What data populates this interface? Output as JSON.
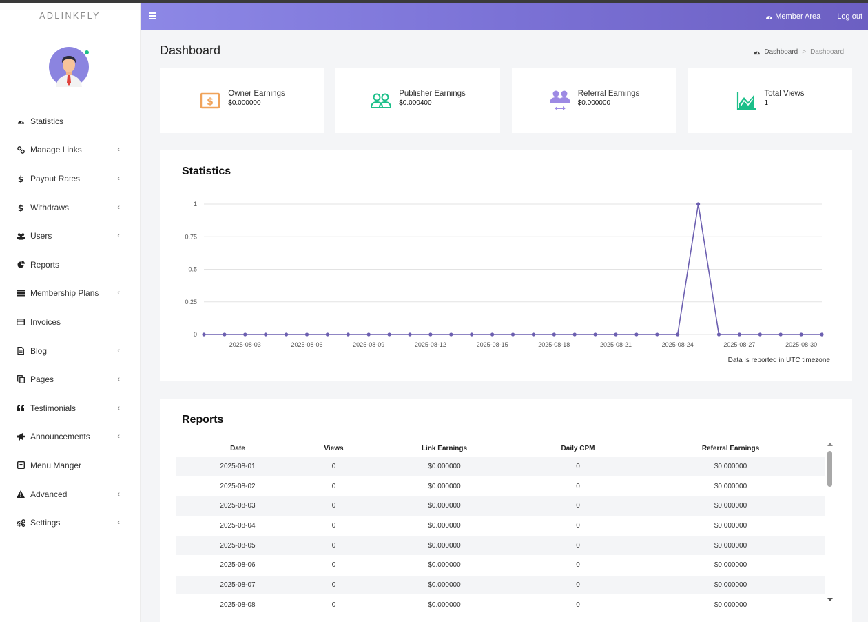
{
  "brand": "ADLINKFLY",
  "sidebar": {
    "items": [
      {
        "label": "Statistics",
        "icon": "tachometer-icon",
        "has_submenu": false
      },
      {
        "label": "Manage Links",
        "icon": "link-icon",
        "has_submenu": true
      },
      {
        "label": "Payout Rates",
        "icon": "dollar-icon",
        "has_submenu": true
      },
      {
        "label": "Withdraws",
        "icon": "dollar-icon",
        "has_submenu": true
      },
      {
        "label": "Users",
        "icon": "users-icon",
        "has_submenu": true
      },
      {
        "label": "Reports",
        "icon": "pie-chart-icon",
        "has_submenu": false
      },
      {
        "label": "Membership Plans",
        "icon": "bars-icon",
        "has_submenu": true
      },
      {
        "label": "Invoices",
        "icon": "credit-card-icon",
        "has_submenu": false
      },
      {
        "label": "Blog",
        "icon": "file-icon",
        "has_submenu": true
      },
      {
        "label": "Pages",
        "icon": "copy-icon",
        "has_submenu": true
      },
      {
        "label": "Testimonials",
        "icon": "quote-icon",
        "has_submenu": true
      },
      {
        "label": "Announcements",
        "icon": "bullhorn-icon",
        "has_submenu": true
      },
      {
        "label": "Menu Manger",
        "icon": "caret-square-icon",
        "has_submenu": false
      },
      {
        "label": "Advanced",
        "icon": "warning-icon",
        "has_submenu": true
      },
      {
        "label": "Settings",
        "icon": "cogs-icon",
        "has_submenu": true
      }
    ]
  },
  "header": {
    "member_area": "Member Area",
    "logout": "Log out"
  },
  "page": {
    "title": "Dashboard",
    "breadcrumb": [
      "Dashboard",
      "Dashboard"
    ]
  },
  "stats": [
    {
      "label": "Owner Earnings",
      "value": "$0.000000",
      "icon": "money-icon",
      "color": "#f0a35a"
    },
    {
      "label": "Publisher Earnings",
      "value": "$0.000400",
      "icon": "users-outline-icon",
      "color": "#1bbf89"
    },
    {
      "label": "Referral Earnings",
      "value": "$0.000000",
      "icon": "referral-icon",
      "color": "#9d8ae4"
    },
    {
      "label": "Total Views",
      "value": "1",
      "icon": "area-chart-icon",
      "color": "#1bbf89"
    }
  ],
  "statistics": {
    "title": "Statistics",
    "note": "Data is reported in UTC timezone"
  },
  "chart_data": {
    "type": "line",
    "x": [
      "2025-08-01",
      "2025-08-02",
      "2025-08-03",
      "2025-08-04",
      "2025-08-05",
      "2025-08-06",
      "2025-08-07",
      "2025-08-08",
      "2025-08-09",
      "2025-08-10",
      "2025-08-11",
      "2025-08-12",
      "2025-08-13",
      "2025-08-14",
      "2025-08-15",
      "2025-08-16",
      "2025-08-17",
      "2025-08-18",
      "2025-08-19",
      "2025-08-20",
      "2025-08-21",
      "2025-08-22",
      "2025-08-23",
      "2025-08-24",
      "2025-08-25",
      "2025-08-26",
      "2025-08-27",
      "2025-08-28",
      "2025-08-29",
      "2025-08-30",
      "2025-08-31"
    ],
    "series": [
      {
        "values": [
          0,
          0,
          0,
          0,
          0,
          0,
          0,
          0,
          0,
          0,
          0,
          0,
          0,
          0,
          0,
          0,
          0,
          0,
          0,
          0,
          0,
          0,
          0,
          0,
          1,
          0,
          0,
          0,
          0,
          0,
          0
        ]
      }
    ],
    "x_tick_labels": [
      "2025-08-03",
      "2025-08-06",
      "2025-08-09",
      "2025-08-12",
      "2025-08-15",
      "2025-08-18",
      "2025-08-21",
      "2025-08-24",
      "2025-08-27",
      "2025-08-30"
    ],
    "y_ticks": [
      "0",
      "0.25",
      "0.5",
      "0.75",
      "1"
    ],
    "ylim": [
      0,
      1
    ],
    "line_color": "#6c5fb0",
    "grid": true
  },
  "reports": {
    "title": "Reports",
    "columns": [
      "Date",
      "Views",
      "Link Earnings",
      "Daily CPM",
      "Referral Earnings"
    ],
    "rows": [
      [
        "2025-08-01",
        "0",
        "$0.000000",
        "0",
        "$0.000000"
      ],
      [
        "2025-08-02",
        "0",
        "$0.000000",
        "0",
        "$0.000000"
      ],
      [
        "2025-08-03",
        "0",
        "$0.000000",
        "0",
        "$0.000000"
      ],
      [
        "2025-08-04",
        "0",
        "$0.000000",
        "0",
        "$0.000000"
      ],
      [
        "2025-08-05",
        "0",
        "$0.000000",
        "0",
        "$0.000000"
      ],
      [
        "2025-08-06",
        "0",
        "$0.000000",
        "0",
        "$0.000000"
      ],
      [
        "2025-08-07",
        "0",
        "$0.000000",
        "0",
        "$0.000000"
      ],
      [
        "2025-08-08",
        "0",
        "$0.000000",
        "0",
        "$0.000000"
      ]
    ]
  }
}
